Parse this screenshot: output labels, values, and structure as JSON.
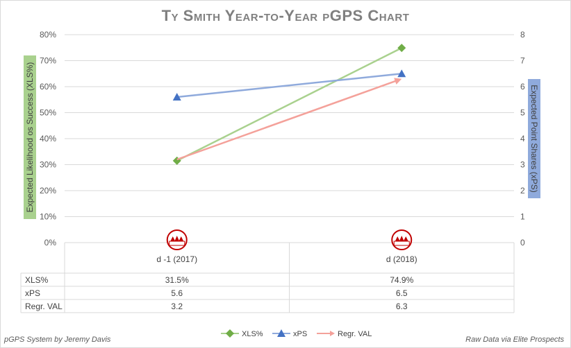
{
  "footer": {
    "left": "pGPS System by Jeremy Davis",
    "right": "Raw Data via Elite Prospects"
  },
  "colors": {
    "xls": "#70ad47",
    "xls_line": "#a9d18e",
    "xps": "#4472c4",
    "xps_line": "#8faadc",
    "regr": "#f4a19a"
  },
  "chart_data": {
    "type": "line",
    "title": "Ty Smith Year-to-Year pGPS Chart",
    "ylabel": "Expected Likelihood os Success (XLS%)",
    "y2label": "Expected Point Shares (xPS)",
    "categories": [
      "d -1 (2017)",
      "d (2018)"
    ],
    "category_icon": "whl-logo-icon",
    "ylim": [
      0,
      80
    ],
    "y_ticks": [
      "0%",
      "10%",
      "20%",
      "30%",
      "40%",
      "50%",
      "60%",
      "70%",
      "80%"
    ],
    "y2lim": [
      0,
      8
    ],
    "y2_ticks": [
      "0",
      "1",
      "2",
      "3",
      "4",
      "5",
      "6",
      "7",
      "8"
    ],
    "grid": true,
    "legend_position": "bottom",
    "series": [
      {
        "name": "XLS%",
        "axis": "left",
        "marker": "diamond",
        "values": [
          31.5,
          74.9
        ],
        "labels": [
          "31.5%",
          "74.9%"
        ]
      },
      {
        "name": "xPS",
        "axis": "right",
        "marker": "triangle",
        "values": [
          5.6,
          6.5
        ],
        "labels": [
          "5.6",
          "6.5"
        ]
      },
      {
        "name": "Regr. VAL",
        "axis": "right",
        "marker": "arrow",
        "values": [
          3.2,
          6.3
        ],
        "labels": [
          "3.2",
          "6.3"
        ]
      }
    ]
  }
}
